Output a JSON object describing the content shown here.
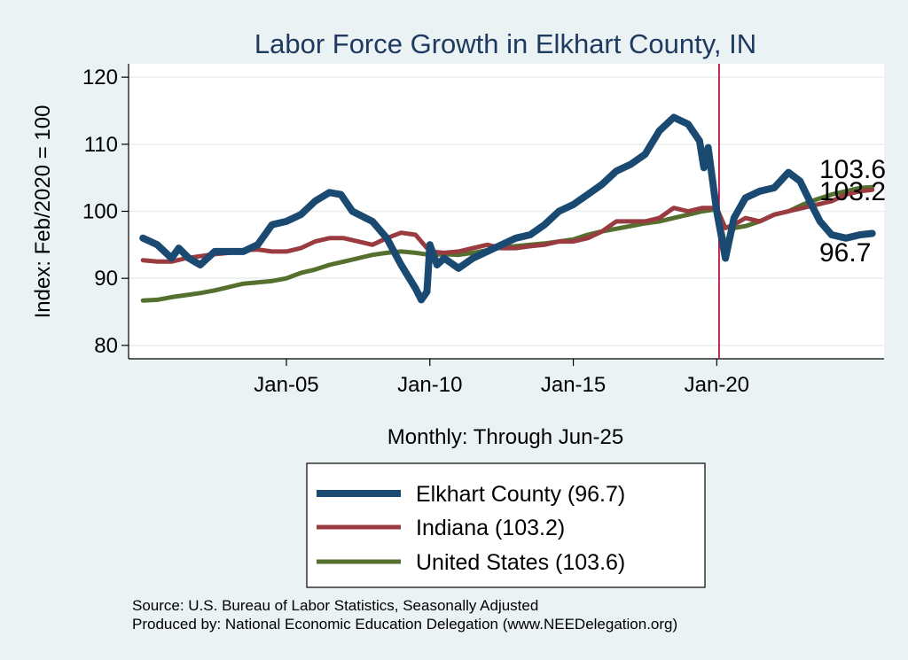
{
  "chart_data": {
    "type": "line",
    "title": "Labor Force Growth in Elkhart  County, IN",
    "ylabel": "Index: Feb/2020 = 100",
    "xlabel": "Monthly: Through Jun-25",
    "ylim": [
      78,
      122
    ],
    "yticks": [
      80,
      90,
      100,
      110,
      120
    ],
    "xlim": [
      1999.5,
      2025.83
    ],
    "xticks": [
      {
        "year": 2005.0,
        "label": "Jan-05"
      },
      {
        "year": 2010.0,
        "label": "Jan-10"
      },
      {
        "year": 2015.0,
        "label": "Jan-15"
      },
      {
        "year": 2020.0,
        "label": "Jan-20"
      }
    ],
    "vline": {
      "year": 2020.08,
      "color": "#c0143c"
    },
    "series": [
      {
        "name": "Elkhart  County (96.7)",
        "color": "#1a4a72",
        "end_label": "96.7",
        "points": [
          [
            2000.0,
            96.0
          ],
          [
            2000.5,
            95.0
          ],
          [
            2001.0,
            93.0
          ],
          [
            2001.25,
            94.5
          ],
          [
            2001.6,
            93.0
          ],
          [
            2002.0,
            92.0
          ],
          [
            2002.5,
            94.0
          ],
          [
            2003.0,
            94.0
          ],
          [
            2003.5,
            94.0
          ],
          [
            2004.0,
            95.0
          ],
          [
            2004.5,
            98.0
          ],
          [
            2005.0,
            98.5
          ],
          [
            2005.5,
            99.5
          ],
          [
            2006.0,
            101.5
          ],
          [
            2006.5,
            102.8
          ],
          [
            2006.9,
            102.5
          ],
          [
            2007.3,
            100.0
          ],
          [
            2008.0,
            98.5
          ],
          [
            2008.5,
            96.0
          ],
          [
            2009.0,
            92.0
          ],
          [
            2009.5,
            88.5
          ],
          [
            2009.7,
            86.8
          ],
          [
            2009.9,
            88.0
          ],
          [
            2010.0,
            95.0
          ],
          [
            2010.25,
            92.0
          ],
          [
            2010.5,
            93.0
          ],
          [
            2011.0,
            91.5
          ],
          [
            2011.5,
            93.0
          ],
          [
            2012.0,
            94.0
          ],
          [
            2012.5,
            95.0
          ],
          [
            2013.0,
            96.0
          ],
          [
            2013.5,
            96.5
          ],
          [
            2014.0,
            98.0
          ],
          [
            2014.5,
            100.0
          ],
          [
            2015.0,
            101.0
          ],
          [
            2015.5,
            102.5
          ],
          [
            2016.0,
            104.0
          ],
          [
            2016.5,
            106.0
          ],
          [
            2017.0,
            107.0
          ],
          [
            2017.5,
            108.5
          ],
          [
            2018.0,
            112.0
          ],
          [
            2018.5,
            114.0
          ],
          [
            2019.0,
            113.0
          ],
          [
            2019.4,
            110.5
          ],
          [
            2019.55,
            106.5
          ],
          [
            2019.7,
            109.5
          ],
          [
            2020.0,
            100.0
          ],
          [
            2020.3,
            93.0
          ],
          [
            2020.6,
            99.0
          ],
          [
            2021.0,
            102.0
          ],
          [
            2021.5,
            103.0
          ],
          [
            2022.0,
            103.5
          ],
          [
            2022.5,
            105.8
          ],
          [
            2022.9,
            104.5
          ],
          [
            2023.3,
            101.0
          ],
          [
            2023.6,
            98.5
          ],
          [
            2024.0,
            96.5
          ],
          [
            2024.5,
            96.0
          ],
          [
            2025.0,
            96.5
          ],
          [
            2025.42,
            96.7
          ]
        ]
      },
      {
        "name": "Indiana (103.2)",
        "color": "#9a3b40",
        "end_label": "103.2",
        "points": [
          [
            2000.0,
            92.7
          ],
          [
            2000.5,
            92.5
          ],
          [
            2001.0,
            92.5
          ],
          [
            2001.5,
            93.0
          ],
          [
            2002.0,
            93.3
          ],
          [
            2002.5,
            93.6
          ],
          [
            2003.0,
            93.8
          ],
          [
            2003.5,
            94.2
          ],
          [
            2004.0,
            94.3
          ],
          [
            2004.5,
            94.0
          ],
          [
            2005.0,
            94.0
          ],
          [
            2005.5,
            94.5
          ],
          [
            2006.0,
            95.5
          ],
          [
            2006.5,
            96.0
          ],
          [
            2007.0,
            96.0
          ],
          [
            2007.5,
            95.5
          ],
          [
            2008.0,
            95.0
          ],
          [
            2008.5,
            96.0
          ],
          [
            2009.0,
            96.8
          ],
          [
            2009.5,
            96.5
          ],
          [
            2010.0,
            94.0
          ],
          [
            2010.5,
            93.8
          ],
          [
            2011.0,
            94.0
          ],
          [
            2011.5,
            94.5
          ],
          [
            2012.0,
            95.0
          ],
          [
            2012.5,
            94.5
          ],
          [
            2013.0,
            94.5
          ],
          [
            2013.5,
            94.8
          ],
          [
            2014.0,
            95.0
          ],
          [
            2014.5,
            95.5
          ],
          [
            2015.0,
            95.5
          ],
          [
            2015.5,
            96.0
          ],
          [
            2016.0,
            97.0
          ],
          [
            2016.5,
            98.5
          ],
          [
            2017.0,
            98.5
          ],
          [
            2017.5,
            98.5
          ],
          [
            2018.0,
            99.0
          ],
          [
            2018.5,
            100.5
          ],
          [
            2019.0,
            100.0
          ],
          [
            2019.5,
            100.5
          ],
          [
            2020.0,
            100.5
          ],
          [
            2020.3,
            97.5
          ],
          [
            2020.6,
            98.0
          ],
          [
            2021.0,
            99.0
          ],
          [
            2021.5,
            98.5
          ],
          [
            2022.0,
            99.5
          ],
          [
            2022.5,
            100.0
          ],
          [
            2023.0,
            100.5
          ],
          [
            2023.5,
            101.0
          ],
          [
            2024.0,
            101.5
          ],
          [
            2024.5,
            102.5
          ],
          [
            2025.0,
            103.0
          ],
          [
            2025.42,
            103.2
          ]
        ]
      },
      {
        "name": "United States (103.6)",
        "color": "#55702e",
        "end_label": "103.6",
        "points": [
          [
            2000.0,
            86.7
          ],
          [
            2000.5,
            86.8
          ],
          [
            2001.0,
            87.2
          ],
          [
            2001.5,
            87.5
          ],
          [
            2002.0,
            87.8
          ],
          [
            2002.5,
            88.2
          ],
          [
            2003.0,
            88.7
          ],
          [
            2003.5,
            89.2
          ],
          [
            2004.0,
            89.4
          ],
          [
            2004.5,
            89.6
          ],
          [
            2005.0,
            90.0
          ],
          [
            2005.5,
            90.8
          ],
          [
            2006.0,
            91.3
          ],
          [
            2006.5,
            92.0
          ],
          [
            2007.0,
            92.5
          ],
          [
            2007.5,
            93.0
          ],
          [
            2008.0,
            93.5
          ],
          [
            2008.5,
            93.8
          ],
          [
            2009.0,
            94.0
          ],
          [
            2009.5,
            93.8
          ],
          [
            2010.0,
            93.5
          ],
          [
            2010.5,
            93.6
          ],
          [
            2011.0,
            93.5
          ],
          [
            2011.5,
            93.8
          ],
          [
            2012.0,
            94.2
          ],
          [
            2012.5,
            94.6
          ],
          [
            2013.0,
            94.8
          ],
          [
            2013.5,
            95.0
          ],
          [
            2014.0,
            95.2
          ],
          [
            2014.5,
            95.5
          ],
          [
            2015.0,
            95.8
          ],
          [
            2015.5,
            96.5
          ],
          [
            2016.0,
            97.0
          ],
          [
            2016.5,
            97.4
          ],
          [
            2017.0,
            97.8
          ],
          [
            2017.5,
            98.2
          ],
          [
            2018.0,
            98.5
          ],
          [
            2018.5,
            99.0
          ],
          [
            2019.0,
            99.5
          ],
          [
            2019.5,
            100.0
          ],
          [
            2020.0,
            100.3
          ],
          [
            2020.3,
            95.0
          ],
          [
            2020.6,
            97.5
          ],
          [
            2021.0,
            97.8
          ],
          [
            2021.5,
            98.5
          ],
          [
            2022.0,
            99.5
          ],
          [
            2022.5,
            100.0
          ],
          [
            2023.0,
            101.0
          ],
          [
            2023.5,
            101.8
          ],
          [
            2024.0,
            102.5
          ],
          [
            2024.5,
            103.0
          ],
          [
            2025.0,
            103.5
          ],
          [
            2025.42,
            103.6
          ]
        ]
      }
    ]
  },
  "notes": {
    "source": "Source: U.S. Bureau of Labor Statistics, Seasonally Adjusted",
    "produced": "Produced by: National Economic Education Delegation (www.NEEDelegation.org)"
  }
}
